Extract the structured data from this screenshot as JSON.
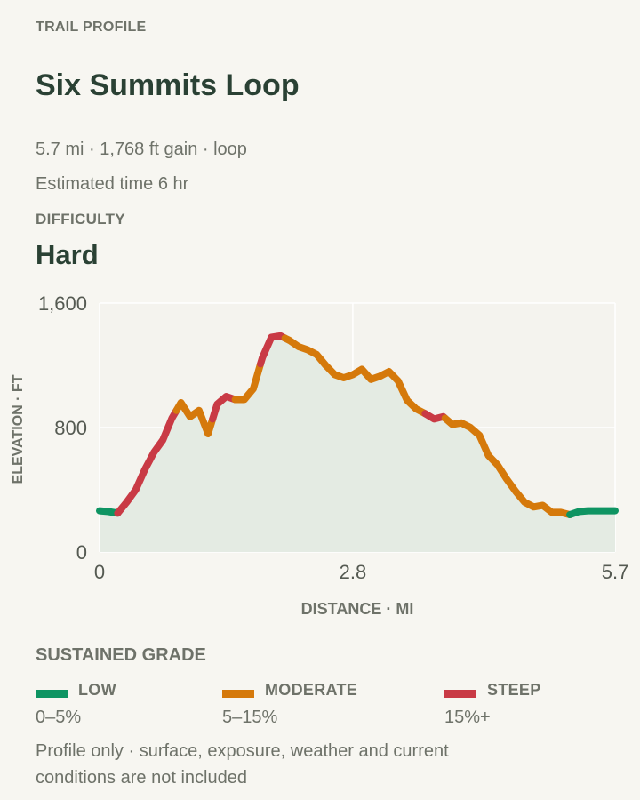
{
  "header": {
    "eyebrow": "TRAIL PROFILE",
    "title": "Six Summits Loop",
    "stats": "5.7 mi · 1,768 ft gain · loop",
    "time": "Estimated time 6 hr",
    "difficulty_label": "DIFFICULTY",
    "difficulty_value": "Hard"
  },
  "chart_data": {
    "type": "line",
    "xlabel": "DISTANCE · MI",
    "ylabel": "ELEVATION · FT",
    "xlim": [
      0,
      5.7
    ],
    "ylim": [
      0,
      1600
    ],
    "xticks": [
      {
        "v": 0,
        "label": "0"
      },
      {
        "v": 2.8,
        "label": "2.8"
      },
      {
        "v": 5.7,
        "label": "5.7"
      }
    ],
    "yticks": [
      {
        "v": 0,
        "label": "0"
      },
      {
        "v": 800,
        "label": "800"
      },
      {
        "v": 1600,
        "label": "1,600"
      }
    ],
    "grid": true,
    "area_fill": true,
    "x": [
      0,
      0.1,
      0.2,
      0.3,
      0.4,
      0.5,
      0.6,
      0.7,
      0.8,
      0.9,
      1.0,
      1.1,
      1.2,
      1.3,
      1.4,
      1.5,
      1.6,
      1.7,
      1.8,
      1.9,
      2.0,
      2.1,
      2.2,
      2.3,
      2.4,
      2.5,
      2.6,
      2.7,
      2.8,
      2.9,
      3.0,
      3.1,
      3.2,
      3.3,
      3.4,
      3.5,
      3.6,
      3.7,
      3.8,
      3.9,
      4.0,
      4.1,
      4.2,
      4.3,
      4.4,
      4.5,
      4.6,
      4.7,
      4.8,
      4.9,
      5.0,
      5.1,
      5.2,
      5.3,
      5.4,
      5.5,
      5.6,
      5.7
    ],
    "y": [
      265,
      260,
      250,
      320,
      400,
      530,
      640,
      720,
      860,
      960,
      870,
      910,
      760,
      950,
      1000,
      980,
      980,
      1050,
      1250,
      1380,
      1390,
      1360,
      1320,
      1300,
      1270,
      1200,
      1140,
      1120,
      1140,
      1175,
      1110,
      1130,
      1160,
      1100,
      975,
      920,
      890,
      855,
      870,
      820,
      830,
      800,
      750,
      620,
      560,
      470,
      390,
      320,
      290,
      300,
      255,
      255,
      240,
      260,
      265,
      265,
      265,
      265
    ],
    "grade_segments": [
      {
        "from": 0,
        "to": 0.2,
        "grade": "low"
      },
      {
        "from": 0.2,
        "to": 0.85,
        "grade": "steep"
      },
      {
        "from": 0.85,
        "to": 1.25,
        "grade": "moderate"
      },
      {
        "from": 1.25,
        "to": 1.5,
        "grade": "steep"
      },
      {
        "from": 1.5,
        "to": 1.78,
        "grade": "moderate"
      },
      {
        "from": 1.78,
        "to": 2.05,
        "grade": "steep"
      },
      {
        "from": 2.05,
        "to": 3.6,
        "grade": "moderate"
      },
      {
        "from": 3.6,
        "to": 3.82,
        "grade": "steep"
      },
      {
        "from": 3.82,
        "to": 5.2,
        "grade": "moderate"
      },
      {
        "from": 5.2,
        "to": 5.7,
        "grade": "low"
      }
    ],
    "colors": {
      "low": "#0e9462",
      "moderate": "#d5790b",
      "steep": "#c93a45",
      "area": "#e4ebe3",
      "plot_bg": "#f4f3ee",
      "grid": "#ffffff",
      "tick": "#555a52"
    }
  },
  "legend": {
    "title": "SUSTAINED GRADE",
    "items": [
      {
        "name": "LOW",
        "range": "0–5%",
        "color": "#0e9462"
      },
      {
        "name": "MODERATE",
        "range": "5–15%",
        "color": "#d5790b"
      },
      {
        "name": "STEEP",
        "range": "15%+",
        "color": "#c93a45"
      }
    ]
  },
  "footnote": "Profile only · surface, exposure, weather and current conditions are not included"
}
